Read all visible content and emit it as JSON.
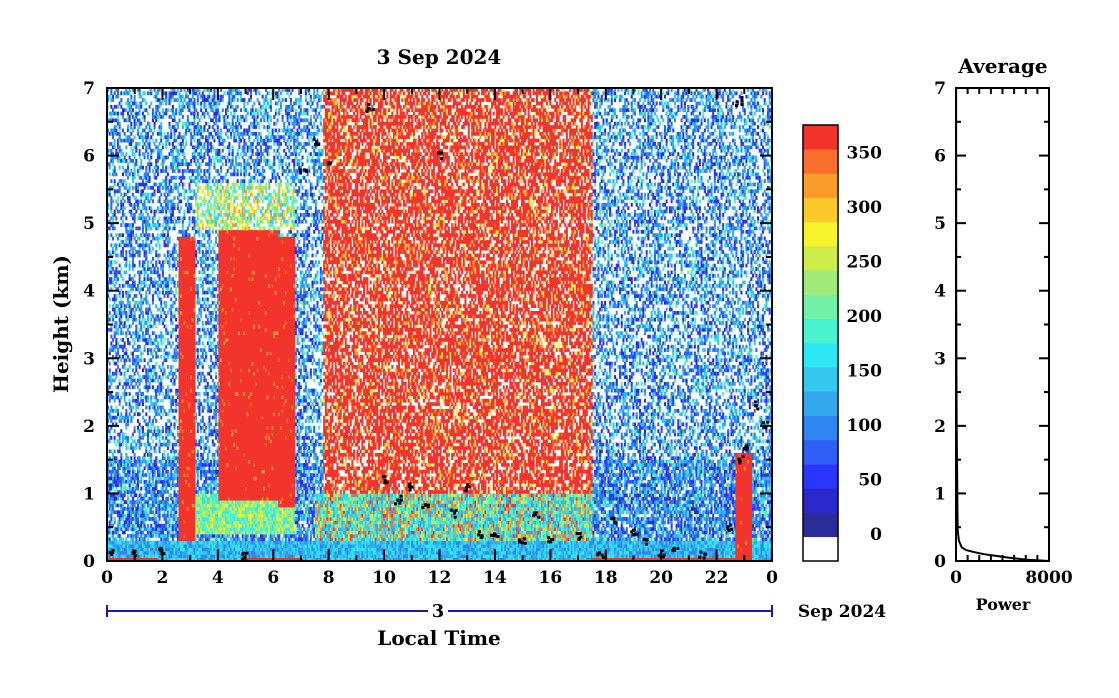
{
  "chart_data": [
    {
      "type": "heatmap",
      "title": "3 Sep 2024",
      "xlabel": "Local Time",
      "ylabel": "Height (km)",
      "xlim": [
        0,
        24
      ],
      "ylim": [
        0,
        7
      ],
      "x_ticks": [
        "0",
        "2",
        "4",
        "6",
        "8",
        "10",
        "12",
        "14",
        "16",
        "18",
        "20",
        "22",
        "0"
      ],
      "y_ticks": [
        "0",
        "1",
        "2",
        "3",
        "4",
        "5",
        "6",
        "7"
      ],
      "date_axis": {
        "day_label": "3",
        "month_year_label": "Sep 2024"
      },
      "colorbar": {
        "ticks": [
          "0",
          "50",
          "100",
          "150",
          "200",
          "250",
          "300",
          "350"
        ],
        "tick_values": [
          0,
          50,
          100,
          150,
          200,
          250,
          300,
          350
        ],
        "range": [
          -25,
          375
        ],
        "colors": [
          "#ffffff",
          "#2b2b9a",
          "#2a2acc",
          "#2a35ff",
          "#2e60f5",
          "#2f86f0",
          "#31a9ec",
          "#35c8ef",
          "#2de8f3",
          "#49f3cf",
          "#72f0a5",
          "#a0ec7a",
          "#cdec48",
          "#f6f22c",
          "#fcc82a",
          "#fb9c2a",
          "#f76f2b",
          "#f2352c"
        ]
      },
      "regions": [
        {
          "hours": [
            0,
            2.6
          ],
          "base": [
            0,
            0.3
          ],
          "low": [
            0.3,
            1.2
          ],
          "upper": [
            1.2,
            7
          ],
          "level": "low-scattered-blue"
        },
        {
          "hours": [
            2.6,
            3.2
          ],
          "core": [
            0.3,
            4.8
          ],
          "level": "saturated-red-column"
        },
        {
          "hours": [
            3.2,
            4.0
          ],
          "base": [
            0,
            1.0
          ],
          "upper": [
            1.0,
            7
          ],
          "level": "scattered-blue"
        },
        {
          "hours": [
            4.0,
            6.2
          ],
          "core": [
            0.9,
            4.9
          ],
          "level": "saturated-red-block"
        },
        {
          "hours": [
            6.2,
            6.8
          ],
          "core": [
            0.8,
            4.8
          ],
          "level": "saturated-red-column"
        },
        {
          "hours": [
            7.8,
            17.5
          ],
          "core": [
            1.0,
            7
          ],
          "level": "dense-red-speckle"
        },
        {
          "hours": [
            17.5,
            24
          ],
          "base": [
            0,
            0.6
          ],
          "upper": [
            0.6,
            7
          ],
          "level": "scattered-blue"
        },
        {
          "hours": [
            22.7,
            23.3
          ],
          "core": [
            0,
            1.6
          ],
          "level": "saturated-red-column"
        }
      ],
      "boundary_layer_dots": [
        [
          0.2,
          0.1
        ],
        [
          1.0,
          0.12
        ],
        [
          2.0,
          0.15
        ],
        [
          5.0,
          0.08
        ],
        [
          7.1,
          5.8
        ],
        [
          7.6,
          6.2
        ],
        [
          8.0,
          5.9
        ],
        [
          9.5,
          6.7
        ],
        [
          10.0,
          1.2
        ],
        [
          10.5,
          0.9
        ],
        [
          11.0,
          1.1
        ],
        [
          11.5,
          0.8
        ],
        [
          12.0,
          6.0
        ],
        [
          12.5,
          0.7
        ],
        [
          13.0,
          1.1
        ],
        [
          13.5,
          0.4
        ],
        [
          14.0,
          0.35
        ],
        [
          15.0,
          0.3
        ],
        [
          15.5,
          0.7
        ],
        [
          16.0,
          0.3
        ],
        [
          17.0,
          0.35
        ],
        [
          17.8,
          0.1
        ],
        [
          18.3,
          0.6
        ],
        [
          19.0,
          0.4
        ],
        [
          19.5,
          0.3
        ],
        [
          20.0,
          0.1
        ],
        [
          20.5,
          0.2
        ],
        [
          21.5,
          0.08
        ],
        [
          22.5,
          0.5
        ],
        [
          22.9,
          1.5
        ],
        [
          23.1,
          1.7
        ],
        [
          23.4,
          2.3
        ],
        [
          23.8,
          2.0
        ],
        [
          22.8,
          6.8
        ]
      ]
    },
    {
      "type": "line",
      "title": "Average",
      "xlabel": "Power",
      "ylabel": "",
      "xlim": [
        0,
        8000
      ],
      "ylim": [
        0,
        7
      ],
      "x_ticks": [
        "0",
        "8000"
      ],
      "y_ticks": [
        "0",
        "1",
        "2",
        "3",
        "4",
        "5",
        "6",
        "7"
      ],
      "series": [
        {
          "x": [
            8000,
            6000,
            4500,
            3300,
            2400,
            1600,
            900,
            500,
            250,
            150,
            120,
            100,
            80,
            60,
            40,
            20,
            10
          ],
          "y": [
            0.0,
            0.02,
            0.05,
            0.08,
            0.1,
            0.13,
            0.16,
            0.2,
            0.3,
            0.45,
            0.8,
            1.2,
            1.6,
            2.0,
            2.6,
            4.0,
            7.0
          ]
        }
      ]
    }
  ]
}
